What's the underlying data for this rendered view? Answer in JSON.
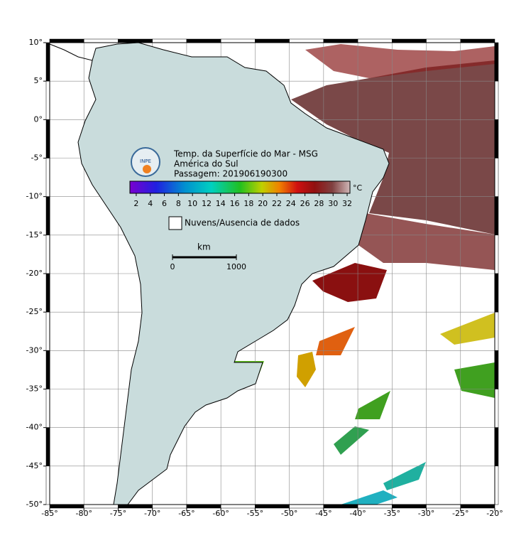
{
  "map": {
    "title_lines": [
      "Temp. da Superfície do Mar - MSG",
      "América do Sul",
      "Passagem: 201906190300"
    ],
    "logo": "INPE",
    "lonlim": [
      -85,
      -20
    ],
    "latlim": [
      -50,
      10
    ],
    "lonticks": [
      {
        "value": -85,
        "label": "-85°"
      },
      {
        "value": -80,
        "label": "-80°"
      },
      {
        "value": -75,
        "label": "-75°"
      },
      {
        "value": -70,
        "label": "-70°"
      },
      {
        "value": -65,
        "label": "-65°"
      },
      {
        "value": -60,
        "label": "-60°"
      },
      {
        "value": -55,
        "label": "-55°"
      },
      {
        "value": -50,
        "label": "-50°"
      },
      {
        "value": -45,
        "label": "-45°"
      },
      {
        "value": -40,
        "label": "-40°"
      },
      {
        "value": -35,
        "label": "-35°"
      },
      {
        "value": -30,
        "label": "-30°"
      },
      {
        "value": -25,
        "label": "-25°"
      },
      {
        "value": -20,
        "label": "-20°"
      }
    ],
    "latticks": [
      {
        "value": 10,
        "label": "10°"
      },
      {
        "value": 5,
        "label": "5°"
      },
      {
        "value": 0,
        "label": "0°"
      },
      {
        "value": -5,
        "label": "-5°"
      },
      {
        "value": -10,
        "label": "-10°"
      },
      {
        "value": -15,
        "label": "-15°"
      },
      {
        "value": -20,
        "label": "-20°"
      },
      {
        "value": -25,
        "label": "-25°"
      },
      {
        "value": -30,
        "label": "-30°"
      },
      {
        "value": -35,
        "label": "-35°"
      },
      {
        "value": -40,
        "label": "-40°"
      },
      {
        "value": -45,
        "label": "-45°"
      },
      {
        "value": -50,
        "label": "-50°"
      }
    ],
    "grid": true,
    "colorbar": {
      "lim": [
        1.1,
        32.4
      ],
      "ticks": [
        2,
        4,
        6,
        8,
        10,
        12,
        14,
        16,
        18,
        20,
        22,
        24,
        26,
        28,
        30,
        32
      ],
      "unit": "°C"
    },
    "legend": "Nuvens/Ausencia de dados",
    "scale": {
      "unit": "km",
      "ticks": [
        0,
        1000
      ]
    }
  }
}
